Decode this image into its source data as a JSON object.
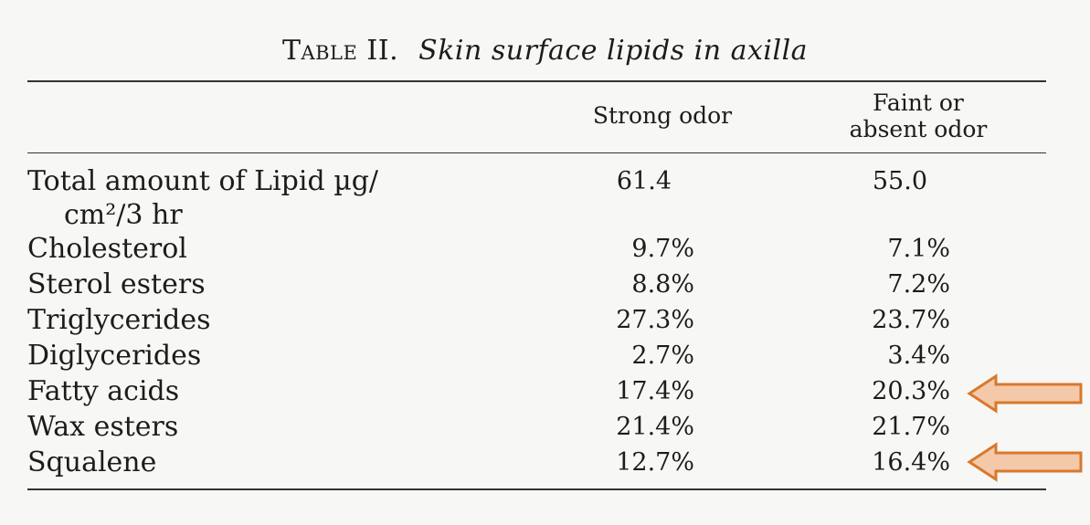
{
  "table": {
    "title_label": "Table",
    "title_number": "II.",
    "caption": "Skin surface lipids in axilla",
    "columns": {
      "strong": "Strong odor",
      "faint_line1": "Faint or",
      "faint_line2": "absent odor"
    },
    "total": {
      "label_line1": "Total amount of Lipid µg/",
      "label_line2": "cm²/3 hr",
      "strong": "61.4",
      "faint": "55.0"
    },
    "rows": [
      {
        "label": "Cholesterol",
        "strong": "9.7%",
        "faint": "7.1%"
      },
      {
        "label": "Sterol esters",
        "strong": "8.8%",
        "faint": "7.2%"
      },
      {
        "label": "Triglycerides",
        "strong": "27.3%",
        "faint": "23.7%"
      },
      {
        "label": "Diglycerides",
        "strong": "2.7%",
        "faint": "3.4%"
      },
      {
        "label": "Fatty acids",
        "strong": "17.4%",
        "faint": "20.3%"
      },
      {
        "label": "Wax esters",
        "strong": "21.4%",
        "faint": "21.7%"
      },
      {
        "label": "Squalene",
        "strong": "12.7%",
        "faint": "16.4%"
      }
    ]
  },
  "annotations": {
    "arrow_color_fill": "#f4c9a9",
    "arrow_color_stroke": "#d9782c",
    "highlighted_rows": [
      "Fatty acids",
      "Squalene"
    ]
  }
}
